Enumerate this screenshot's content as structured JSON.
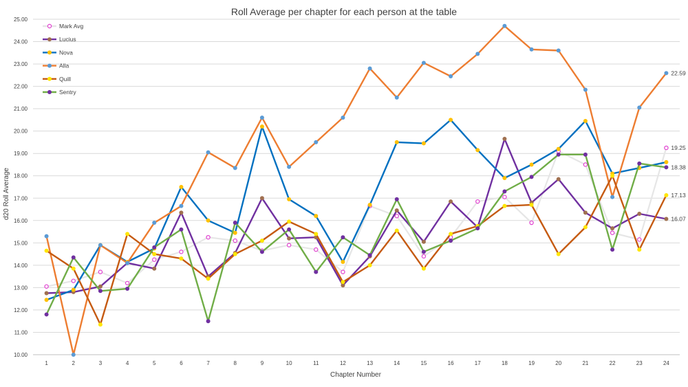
{
  "chart_data": {
    "type": "line",
    "title": "Roll Average per chapter for each person at the table",
    "xlabel": "Chapter Number",
    "ylabel": "d20 Roll Average",
    "ylim": [
      10,
      25
    ],
    "grid": true,
    "legend_position": "top-left",
    "y_ticks": [
      "10.00",
      "11.00",
      "12.00",
      "13.00",
      "14.00",
      "15.00",
      "16.00",
      "17.00",
      "18.00",
      "19.00",
      "20.00",
      "21.00",
      "22.00",
      "23.00",
      "24.00",
      "25.00"
    ],
    "categories": [
      "1",
      "2",
      "3",
      "4",
      "5",
      "6",
      "7",
      "8",
      "9",
      "10",
      "11",
      "12",
      "13",
      "14",
      "15",
      "16",
      "17",
      "18",
      "19",
      "20",
      "21",
      "22",
      "23",
      "24"
    ],
    "series": [
      {
        "name": "Mark Avg",
        "line": "#E6E6E6",
        "marker": "#E040D0",
        "hollow": true,
        "end_label": "19.25",
        "values": [
          13.05,
          13.3,
          13.7,
          13.2,
          14.25,
          14.6,
          15.25,
          15.1,
          14.65,
          14.9,
          14.7,
          13.7,
          16.65,
          16.2,
          14.4,
          15.25,
          16.85,
          17.05,
          15.9,
          19.1,
          18.5,
          15.45,
          15.15,
          19.25
        ]
      },
      {
        "name": "Lucius",
        "line": "#7030A0",
        "marker": "#A07050",
        "hollow": false,
        "end_label": "16.07",
        "values": [
          12.75,
          12.8,
          13.05,
          14.1,
          13.85,
          16.35,
          13.5,
          14.55,
          17.0,
          15.2,
          15.25,
          13.1,
          14.4,
          16.45,
          15.05,
          16.85,
          15.7,
          19.65,
          16.8,
          17.85,
          16.35,
          15.65,
          16.3,
          16.07
        ]
      },
      {
        "name": "Nova",
        "line": "#0070C0",
        "marker": "#FFC000",
        "hollow": false,
        "end_label": "",
        "values": [
          12.45,
          12.9,
          14.9,
          14.15,
          14.75,
          17.5,
          16.0,
          15.45,
          20.2,
          16.95,
          16.2,
          14.15,
          16.7,
          19.5,
          19.45,
          20.5,
          19.15,
          17.9,
          18.5,
          19.2,
          20.45,
          18.1,
          18.35,
          18.61
        ]
      },
      {
        "name": "Alla",
        "line": "#ED7D31",
        "marker": "#5B9BD5",
        "hollow": false,
        "end_label": "22.59",
        "values": [
          15.3,
          10.0,
          14.9,
          14.1,
          15.9,
          16.65,
          19.05,
          18.35,
          20.6,
          18.4,
          19.5,
          20.6,
          22.8,
          21.5,
          23.05,
          22.45,
          23.45,
          24.7,
          23.65,
          23.6,
          21.85,
          17.05,
          21.05,
          22.59
        ]
      },
      {
        "name": "Quill",
        "line": "#C55A11",
        "marker": "#FFE600",
        "hollow": false,
        "end_label": "17.13",
        "values": [
          14.65,
          13.85,
          11.35,
          15.4,
          14.5,
          14.3,
          13.4,
          14.5,
          15.1,
          15.95,
          15.4,
          13.25,
          14.0,
          15.55,
          13.85,
          15.4,
          15.75,
          16.65,
          16.7,
          14.5,
          15.7,
          18.0,
          14.7,
          17.13
        ]
      },
      {
        "name": "Sentry",
        "line": "#70AD47",
        "marker": "#7030A0",
        "hollow": false,
        "end_label": "18.38",
        "values": [
          11.8,
          14.35,
          12.85,
          12.95,
          14.8,
          15.6,
          11.5,
          15.9,
          14.6,
          15.6,
          13.7,
          15.25,
          14.45,
          16.95,
          14.6,
          15.1,
          15.65,
          17.3,
          17.95,
          18.95,
          18.95,
          14.7,
          18.55,
          18.38
        ]
      }
    ]
  }
}
